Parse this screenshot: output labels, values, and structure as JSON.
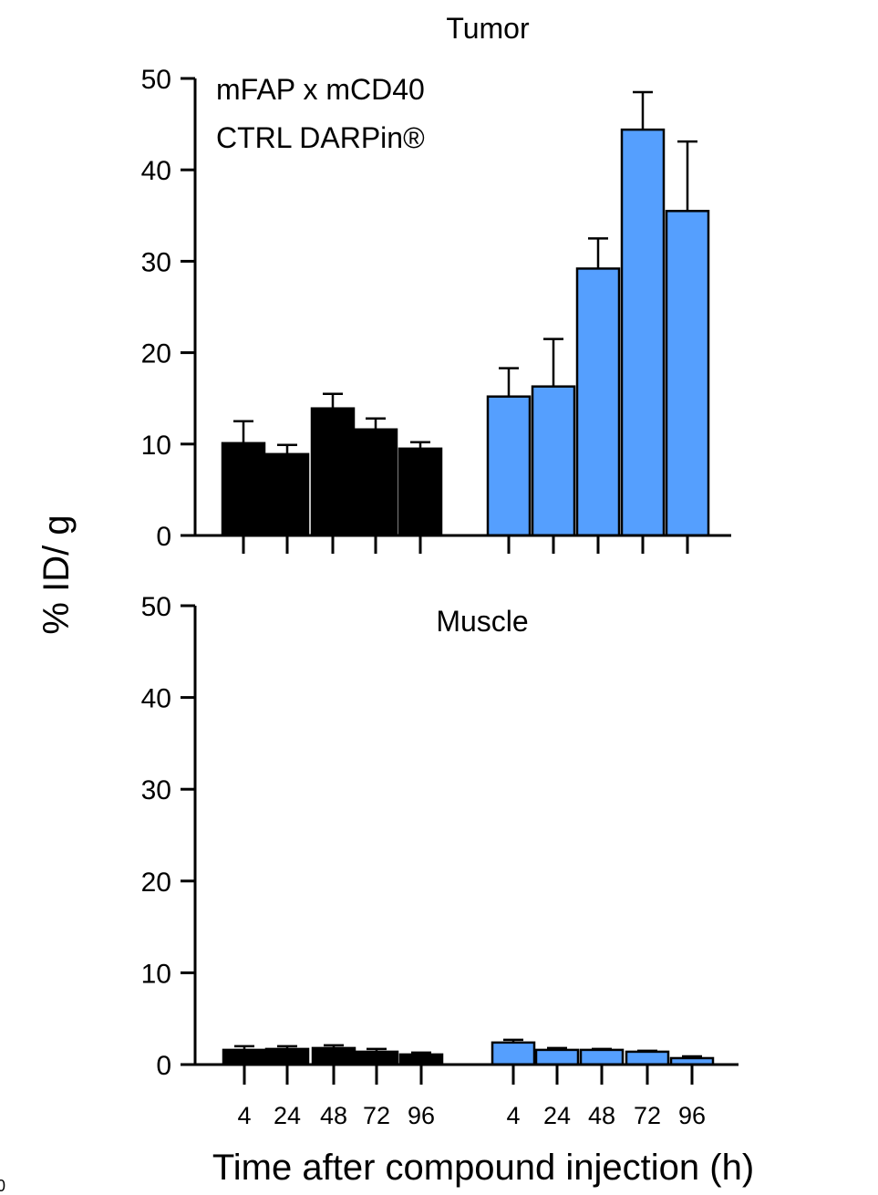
{
  "chart_data": [
    {
      "type": "bar",
      "title": "Tumor",
      "ylim": [
        0,
        50
      ],
      "yticks": [
        0,
        10,
        20,
        30,
        40,
        50
      ],
      "categories": [
        "4",
        "24",
        "48",
        "72",
        "96"
      ],
      "show_category_labels": false,
      "legend_placement": "top-left",
      "series": [
        {
          "name": "CTRL DARPin®",
          "color": "#000000",
          "values": [
            10.1,
            8.9,
            13.9,
            11.6,
            9.5
          ],
          "errors": [
            2.4,
            1.0,
            1.6,
            1.2,
            0.7
          ]
        },
        {
          "name": "mFAP x mCD40",
          "color": "#559ffe",
          "values": [
            15.2,
            16.3,
            29.2,
            44.4,
            35.5
          ],
          "errors": [
            3.1,
            5.2,
            3.3,
            4.1,
            7.6
          ]
        }
      ]
    },
    {
      "type": "bar",
      "title": "Muscle",
      "ylim": [
        0,
        50
      ],
      "yticks": [
        0,
        10,
        20,
        30,
        40,
        50
      ],
      "categories": [
        "4",
        "24",
        "48",
        "72",
        "96"
      ],
      "show_category_labels": true,
      "series": [
        {
          "color": "#000000",
          "values": [
            1.6,
            1.7,
            1.8,
            1.4,
            1.1
          ],
          "errors": [
            0.4,
            0.3,
            0.3,
            0.3,
            0.2
          ]
        },
        {
          "color": "#559ffe",
          "values": [
            2.4,
            1.6,
            1.6,
            1.4,
            0.7
          ],
          "errors": [
            0.3,
            0.2,
            0.1,
            0.1,
            0.2
          ]
        }
      ]
    }
  ],
  "shared": {
    "ylabel": "% ID/ g",
    "xlabel": "Time after compound injection  (h)"
  },
  "stray_text": "0"
}
